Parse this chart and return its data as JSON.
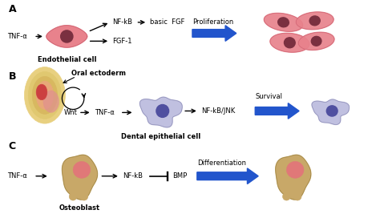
{
  "bg_color": "#ffffff",
  "section_A": {
    "tnf_label": "TNF-α",
    "cell_label": "Endothelial cell",
    "nfkb_label": "NF-kB",
    "basic_fgf_label": "basic  FGF",
    "fgf1_label": "FGF-1",
    "prolif_label": "Proliferation",
    "cell_color": "#e8828c",
    "cell_edge": "#cc6070",
    "nucleus_color": "#7a3040",
    "arrow_color": "#000000",
    "blue_arrow_color": "#2255cc"
  },
  "section_B": {
    "oral_label": "Oral ectoderm",
    "wnt_label": "Wnt",
    "tnf_label": "TNF-α",
    "cell_label": "Dental epithelial cell",
    "nfkb_jnk_label": "NF-kB/JNK",
    "survival_label": "Survival",
    "cell_color": "#c0c0e0",
    "cell_edge": "#9090b8",
    "nucleus_color": "#5050a0",
    "arrow_color": "#000000",
    "blue_arrow_color": "#2255cc",
    "tooth_colors": [
      "#f0e0a0",
      "#e8d090",
      "#e0c080",
      "#d4b060"
    ],
    "tooth_pink": "#e09090",
    "tooth_red": "#c04040"
  },
  "section_C": {
    "tnf_label": "TNF-α",
    "cell_label": "Osteoblast",
    "nfkb_label": "NF-kB",
    "bmp_label": "BMP",
    "diff_label": "Differentiation",
    "cell_color": "#c8a868",
    "cell_edge": "#a08848",
    "nucleus_color": "#e07878",
    "arrow_color": "#000000",
    "blue_arrow_color": "#2255cc"
  }
}
